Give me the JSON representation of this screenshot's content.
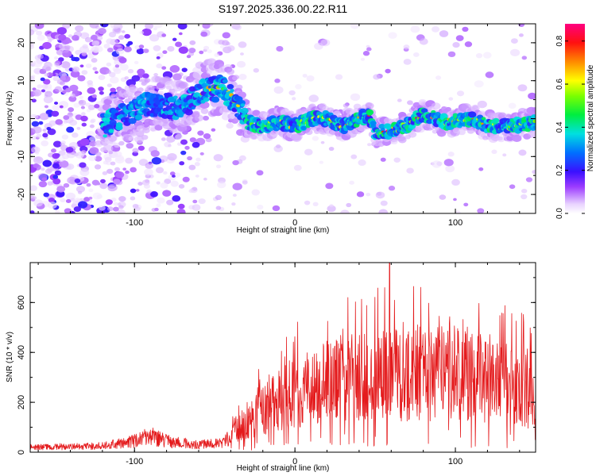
{
  "title": "S197.2025.336.00.22.R11",
  "chart_data": [
    {
      "type": "heatmap",
      "name": "spectrogram",
      "xlabel": "Height of straight line (km)",
      "ylabel": "Frequency (Hz)",
      "xlim": [
        -165,
        150
      ],
      "ylim": [
        -25,
        25
      ],
      "xticks": [
        -100,
        0,
        100
      ],
      "yticks": [
        -20,
        -10,
        0,
        10,
        20
      ],
      "colorbar": {
        "label": "Normalized spectral amplitude",
        "range": [
          0,
          0.88
        ],
        "ticks": [
          0.0,
          0.2,
          0.4,
          0.6,
          0.8
        ]
      },
      "ridge": {
        "description_points": [
          [
            -110,
            0
          ],
          [
            -90,
            4
          ],
          [
            -75,
            3
          ],
          [
            -65,
            4.5
          ],
          [
            -55,
            8
          ],
          [
            -45,
            8
          ],
          [
            -38,
            5
          ],
          [
            -30,
            -1
          ],
          [
            -20,
            -2
          ],
          [
            -10,
            -1
          ],
          [
            0,
            -2
          ],
          [
            10,
            0
          ],
          [
            20,
            0
          ],
          [
            30,
            -2
          ],
          [
            40,
            0
          ],
          [
            46,
            1
          ],
          [
            50,
            -4
          ],
          [
            60,
            -3
          ],
          [
            70,
            -2
          ],
          [
            75,
            0
          ],
          [
            80,
            1
          ],
          [
            95,
            -1
          ],
          [
            110,
            0
          ],
          [
            120,
            -2
          ],
          [
            135,
            -2
          ],
          [
            150,
            -1
          ]
        ]
      }
    },
    {
      "type": "line",
      "name": "snr",
      "xlabel": "Height of straight line (km)",
      "ylabel": "SNR (10 * v/v)",
      "xlim": [
        -165,
        150
      ],
      "ylim": [
        0,
        760
      ],
      "xticks": [
        -100,
        0,
        100
      ],
      "yticks": [
        0,
        200,
        400,
        600
      ],
      "color": "#e41a1c",
      "envelope": {
        "x": [
          -165,
          -120,
          -100,
          -90,
          -80,
          -60,
          -45,
          -38,
          -30,
          -20,
          -10,
          0,
          20,
          40,
          60,
          80,
          100,
          120,
          140,
          150
        ],
        "y": [
          20,
          25,
          45,
          65,
          45,
          30,
          40,
          80,
          140,
          190,
          220,
          260,
          310,
          330,
          340,
          350,
          360,
          330,
          290,
          240
        ]
      },
      "max_point": [
        59,
        760
      ]
    }
  ]
}
